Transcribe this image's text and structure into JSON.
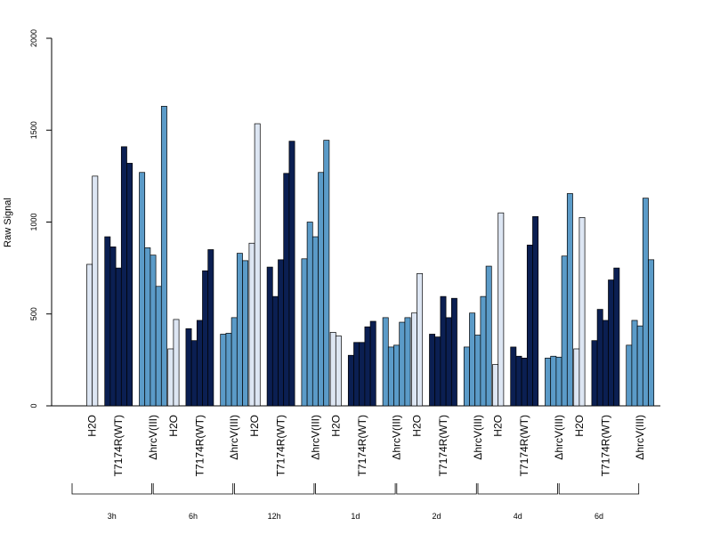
{
  "chart_data": {
    "type": "bar",
    "ylabel": "Raw Signal",
    "ylim": [
      0,
      2000
    ],
    "yticks": [
      "0",
      "500",
      "1000",
      "1500",
      "2000"
    ],
    "colors": {
      "H2O": "#dde6f3",
      "T7174R(WT)": "#0b1f52",
      "ΔhrcV(III)": "#5b9bc8"
    },
    "group_labels": [
      "H2O",
      "T7174R(WT)",
      "ΔhrcV(III)"
    ],
    "timepoints": [
      "3h",
      "6h",
      "12h",
      "1d",
      "2d",
      "4d",
      "6d"
    ],
    "data": [
      [
        [
          770,
          1250
        ],
        [
          920,
          865,
          750,
          1410,
          1320
        ],
        [
          1270,
          860,
          820,
          650,
          1630
        ]
      ],
      [
        [
          310,
          470
        ],
        [
          420,
          355,
          465,
          735,
          850
        ],
        [
          390,
          395,
          480,
          830,
          790
        ]
      ],
      [
        [
          885,
          1535
        ],
        [
          755,
          595,
          795,
          1265,
          1440
        ],
        [
          800,
          1000,
          920,
          1270,
          1445
        ]
      ],
      [
        [
          400,
          380
        ],
        [
          275,
          345,
          345,
          430,
          460
        ],
        [
          480,
          320,
          330,
          455,
          480
        ]
      ],
      [
        [
          505,
          720
        ],
        [
          390,
          375,
          595,
          480,
          585
        ],
        [
          320,
          505,
          385,
          595,
          760
        ]
      ],
      [
        [
          225,
          1050
        ],
        [
          320,
          270,
          260,
          875,
          1030
        ],
        [
          260,
          270,
          265,
          815,
          1155
        ]
      ],
      [
        [
          310,
          1025
        ],
        [
          355,
          525,
          465,
          685,
          750
        ],
        [
          330,
          465,
          435,
          1130,
          795
        ]
      ]
    ]
  }
}
